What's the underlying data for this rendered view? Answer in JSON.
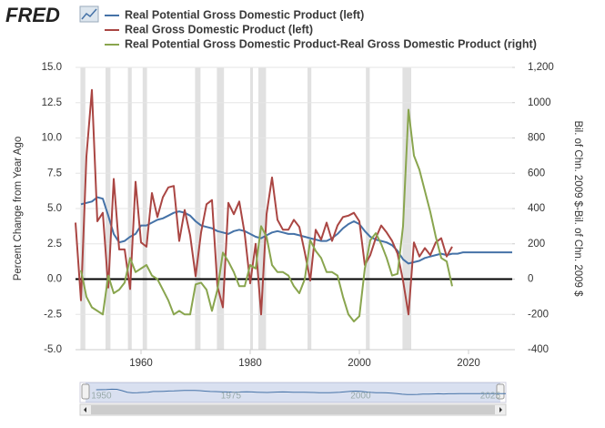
{
  "logo": "FRED",
  "chart_data": {
    "type": "line",
    "x": [
      1948,
      1949,
      1950,
      1951,
      1952,
      1953,
      1954,
      1955,
      1956,
      1957,
      1958,
      1959,
      1960,
      1961,
      1962,
      1963,
      1964,
      1965,
      1966,
      1967,
      1968,
      1969,
      1970,
      1971,
      1972,
      1973,
      1974,
      1975,
      1976,
      1977,
      1978,
      1979,
      1980,
      1981,
      1982,
      1983,
      1984,
      1985,
      1986,
      1987,
      1988,
      1989,
      1990,
      1991,
      1992,
      1993,
      1994,
      1995,
      1996,
      1997,
      1998,
      1999,
      2000,
      2001,
      2002,
      2003,
      2004,
      2005,
      2006,
      2007,
      2008,
      2009,
      2010,
      2011,
      2012,
      2013,
      2014,
      2015,
      2016,
      2017,
      2018,
      2019,
      2020,
      2021,
      2022,
      2023,
      2024,
      2025,
      2026,
      2027,
      2028
    ],
    "series": [
      {
        "name": "Real Potential Gross Domestic Product (left)",
        "color": "#4572a7",
        "axis": "y",
        "values": [
          null,
          5.3,
          5.4,
          5.5,
          5.8,
          5.7,
          4.5,
          3.2,
          2.6,
          2.7,
          3.0,
          3.2,
          3.8,
          3.8,
          4.0,
          4.2,
          4.3,
          4.5,
          4.7,
          4.8,
          4.7,
          4.5,
          4.1,
          3.8,
          3.7,
          3.6,
          3.4,
          3.3,
          3.2,
          3.4,
          3.5,
          3.4,
          3.2,
          3.0,
          2.9,
          3.1,
          3.3,
          3.4,
          3.3,
          3.2,
          3.2,
          3.1,
          3.0,
          2.9,
          2.8,
          2.7,
          2.7,
          2.9,
          3.2,
          3.6,
          3.9,
          4.1,
          3.9,
          3.4,
          3.0,
          2.8,
          2.7,
          2.6,
          2.4,
          2.0,
          1.4,
          1.1,
          1.2,
          1.3,
          1.5,
          1.6,
          1.7,
          1.8,
          1.7,
          1.8,
          1.8,
          1.9,
          1.9,
          1.9,
          1.9,
          1.9,
          1.9,
          1.9,
          1.9,
          1.9,
          1.9
        ]
      },
      {
        "name": "Real Gross Domestic Product (left)",
        "color": "#aa4643",
        "axis": "y",
        "values": [
          4.0,
          -1.5,
          8.7,
          13.4,
          4.1,
          4.7,
          -0.6,
          7.1,
          2.1,
          2.1,
          -0.7,
          6.9,
          2.6,
          2.3,
          6.1,
          4.4,
          5.8,
          6.5,
          6.6,
          2.7,
          4.9,
          3.1,
          0.2,
          3.3,
          5.3,
          5.6,
          -0.5,
          -2.0,
          5.4,
          4.6,
          5.5,
          3.2,
          -0.3,
          2.5,
          -2.5,
          4.6,
          7.2,
          4.2,
          3.5,
          3.5,
          4.2,
          3.7,
          1.9,
          -0.1,
          3.5,
          2.8,
          4.0,
          2.7,
          3.8,
          4.4,
          4.5,
          4.7,
          4.1,
          1.0,
          1.7,
          2.9,
          3.8,
          3.3,
          2.7,
          1.8,
          -0.1,
          -2.5,
          2.6,
          1.6,
          2.2,
          1.7,
          2.6,
          2.9,
          1.6,
          2.3,
          null,
          null,
          null,
          null,
          null,
          null,
          null,
          null,
          null,
          null,
          null
        ]
      },
      {
        "name": "Real Potential Gross Domestic Product-Real Gross Domestic Product (right)",
        "color": "#89a54e",
        "axis": "y2",
        "values": [
          null,
          50,
          -100,
          -160,
          -180,
          -200,
          20,
          -80,
          -60,
          -20,
          120,
          40,
          60,
          80,
          20,
          0,
          -60,
          -120,
          -200,
          -180,
          -200,
          -200,
          -30,
          -20,
          -60,
          -180,
          -60,
          150,
          100,
          40,
          -40,
          -40,
          80,
          60,
          300,
          240,
          80,
          40,
          40,
          20,
          -40,
          -80,
          0,
          220,
          160,
          120,
          40,
          40,
          20,
          -100,
          -200,
          -240,
          -210,
          60,
          220,
          260,
          200,
          120,
          20,
          30,
          300,
          960,
          700,
          620,
          500,
          380,
          240,
          120,
          100,
          -40,
          null,
          null,
          null,
          null,
          null,
          null,
          null,
          null,
          null,
          null,
          null
        ]
      }
    ],
    "recessions": [
      [
        1948.9,
        1949.8
      ],
      [
        1953.5,
        1954.4
      ],
      [
        1957.6,
        1958.3
      ],
      [
        1960.3,
        1961.1
      ],
      [
        1969.9,
        1970.9
      ],
      [
        1973.9,
        1975.2
      ],
      [
        1980.0,
        1980.5
      ],
      [
        1981.5,
        1982.9
      ],
      [
        1990.5,
        1991.2
      ],
      [
        2001.2,
        2001.9
      ],
      [
        2007.9,
        2009.5
      ]
    ],
    "y_label": "Percent Change from Year Ago",
    "y2_label": "Bil. of Chn. 2009 $-Bil. of Chn. 2009 $",
    "xlim": [
      1948,
      2028
    ],
    "xticks": [
      1960,
      1980,
      2000,
      2020
    ],
    "ylim": [
      -5,
      15
    ],
    "yticks": [
      {
        "value": -5,
        "label": "-5.0"
      },
      {
        "value": -2.5,
        "label": "-2.5"
      },
      {
        "value": 0,
        "label": "0.0"
      },
      {
        "value": 2.5,
        "label": "2.5"
      },
      {
        "value": 5,
        "label": "5.0"
      },
      {
        "value": 7.5,
        "label": "7.5"
      },
      {
        "value": 10,
        "label": "10.0"
      },
      {
        "value": 12.5,
        "label": "12.5"
      },
      {
        "value": 15,
        "label": "15.0"
      }
    ],
    "y2lim": [
      -400,
      1200
    ],
    "y2ticks": [
      -400,
      -200,
      0,
      200,
      400,
      600,
      800,
      1000,
      {
        "value": 1200,
        "label": "1,200"
      }
    ],
    "grid": true,
    "navigator_xticks": [
      1950,
      1975,
      2000,
      2025
    ]
  }
}
